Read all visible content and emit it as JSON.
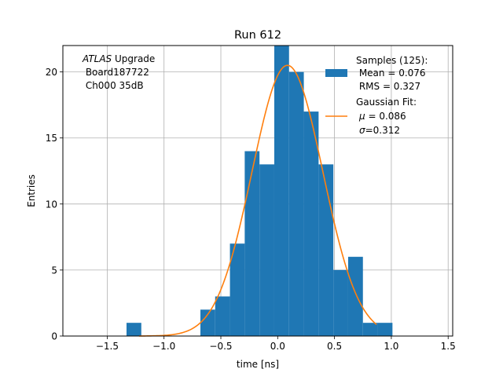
{
  "chart_data": {
    "type": "bar",
    "title": "Run 612",
    "xlabel": "time [ns]",
    "ylabel": "Entries",
    "xlim": [
      -1.89,
      1.54
    ],
    "ylim": [
      0,
      22.0
    ],
    "grid": true,
    "x_ticks": [
      -1.5,
      -1.0,
      -0.5,
      0.0,
      0.5,
      1.0,
      1.5
    ],
    "x_tick_labels": [
      "−1.5",
      "−1.0",
      "−0.5",
      "0.0",
      "0.5",
      "1.0",
      "1.5"
    ],
    "y_ticks": [
      0,
      5,
      10,
      15,
      20
    ],
    "y_tick_labels": [
      "0",
      "5",
      "10",
      "15",
      "20"
    ],
    "histogram": {
      "name": "Samples (125):",
      "color": "#1f77b4",
      "bins": [
        {
          "x0": -1.33,
          "x1": -1.2,
          "count": 1
        },
        {
          "x0": -1.2,
          "x1": -0.68,
          "count": 0
        },
        {
          "x0": -0.68,
          "x1": -0.55,
          "count": 2
        },
        {
          "x0": -0.55,
          "x1": -0.42,
          "count": 3
        },
        {
          "x0": -0.42,
          "x1": -0.29,
          "count": 7
        },
        {
          "x0": -0.29,
          "x1": -0.16,
          "count": 14
        },
        {
          "x0": -0.16,
          "x1": -0.03,
          "count": 13
        },
        {
          "x0": -0.03,
          "x1": 0.1,
          "count": 22
        },
        {
          "x0": 0.1,
          "x1": 0.23,
          "count": 20
        },
        {
          "x0": 0.23,
          "x1": 0.36,
          "count": 17
        },
        {
          "x0": 0.36,
          "x1": 0.49,
          "count": 13
        },
        {
          "x0": 0.49,
          "x1": 0.62,
          "count": 5
        },
        {
          "x0": 0.62,
          "x1": 0.75,
          "count": 6
        },
        {
          "x0": 0.75,
          "x1": 0.88,
          "count": 1
        },
        {
          "x0": 0.88,
          "x1": 1.01,
          "count": 1
        }
      ]
    },
    "fit": {
      "name": "Gaussian Fit:",
      "color": "#ff7f0e",
      "amplitude": 20.5,
      "mu": 0.086,
      "sigma": 0.312,
      "x_range": [
        -1.22,
        0.87
      ]
    },
    "legend": {
      "position": "top-right",
      "hist_lines": [
        "Samples (125):",
        " Mean = 0.076",
        " RMS = 0.327"
      ],
      "fit_title": "Gaussian Fit:",
      "fit_mu_symbol": "μ",
      "fit_mu_text": " = 0.086",
      "fit_sigma_symbol": "σ",
      "fit_sigma_text": "=0.312"
    },
    "annotation": {
      "atlas_italic": "ATLAS",
      "atlas_rest": " Upgrade",
      "line2": " Board187722",
      "line3": " Ch000 35dB"
    }
  }
}
